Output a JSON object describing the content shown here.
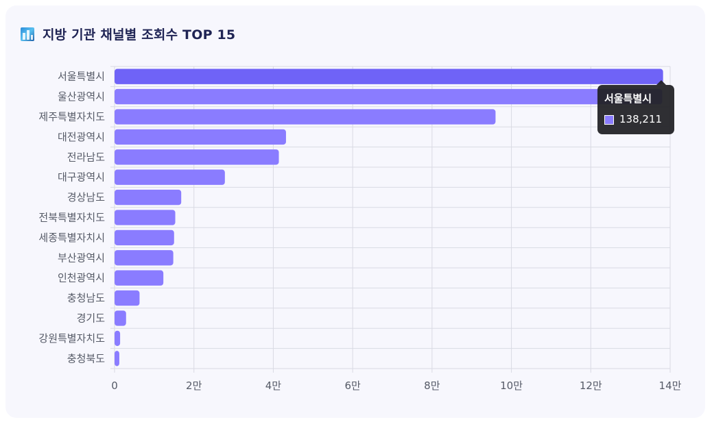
{
  "title": "지방 기관 채널별 조회수 TOP 15",
  "title_icon": "bar-chart-icon",
  "colors": {
    "bar": "#8a7cff",
    "bar_highlight": "#6f63f7",
    "grid": "#d9dae3",
    "axis_text": "#555a66",
    "title": "#1f2454"
  },
  "tooltip": {
    "label": "서울특별시",
    "value": "138,211"
  },
  "chart_data": {
    "type": "bar",
    "orientation": "horizontal",
    "title": "지방 기관 채널별 조회수 TOP 15",
    "categories": [
      "서울특별시",
      "울산광역시",
      "제주특별자치도",
      "대전광역시",
      "전라남도",
      "대구광역시",
      "경상남도",
      "전북특별자치도",
      "세종특별자치시",
      "부산광역시",
      "인천광역시",
      "충청남도",
      "경기도",
      "강원특별자치도",
      "충청북도"
    ],
    "values": [
      138211,
      138000,
      96000,
      43200,
      41400,
      27800,
      16800,
      15300,
      15000,
      14800,
      12300,
      6300,
      2900,
      1400,
      1200
    ],
    "xlim": [
      0,
      140000
    ],
    "xticks": [
      0,
      20000,
      40000,
      60000,
      80000,
      100000,
      120000,
      140000
    ],
    "xtick_labels": [
      "0",
      "2만",
      "4만",
      "6만",
      "8만",
      "10만",
      "12만",
      "14만"
    ],
    "grid": true,
    "legend": "none"
  }
}
